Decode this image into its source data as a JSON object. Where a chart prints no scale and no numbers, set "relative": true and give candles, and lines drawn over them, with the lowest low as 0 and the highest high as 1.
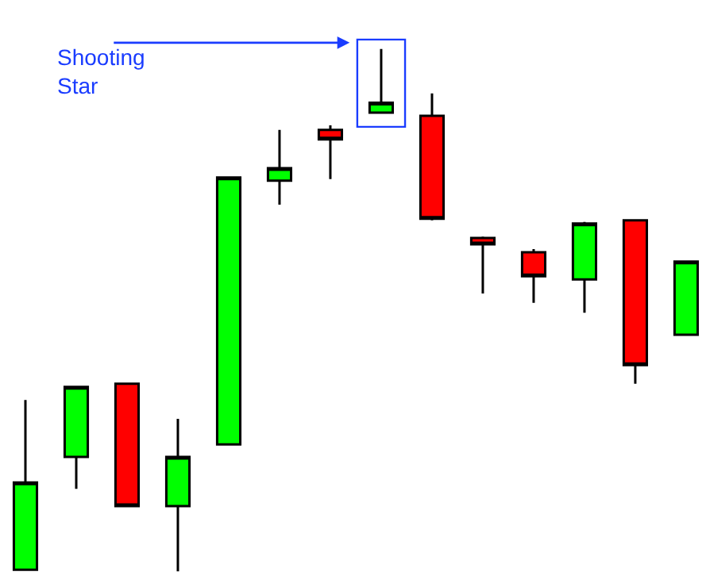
{
  "chart_data": {
    "type": "candlestick",
    "relative": true,
    "categories": [
      null,
      null,
      null,
      null,
      null,
      null,
      null,
      null,
      null,
      null,
      null,
      null,
      null,
      null
    ],
    "ohlc": [
      [
        0.003,
        0.328,
        0.003,
        0.17
      ],
      [
        0.219,
        0.353,
        0.158,
        0.353
      ],
      [
        0.359,
        0.359,
        0.125,
        0.125
      ],
      [
        0.125,
        0.292,
        0.0,
        0.219
      ],
      [
        0.243,
        0.754,
        0.243,
        0.754
      ],
      [
        0.748,
        0.845,
        0.702,
        0.772
      ],
      [
        0.845,
        0.854,
        0.751,
        0.827
      ],
      [
        0.878,
        1.0,
        0.878,
        0.897
      ],
      [
        0.872,
        0.915,
        0.672,
        0.675
      ],
      [
        0.638,
        0.641,
        0.532,
        0.626
      ],
      [
        0.611,
        0.617,
        0.514,
        0.565
      ],
      [
        0.559,
        0.669,
        0.495,
        0.666
      ],
      [
        0.672,
        0.672,
        0.359,
        0.395
      ],
      [
        0.453,
        0.593,
        0.453,
        0.593
      ]
    ],
    "colors": [
      "#00ff00",
      "#00ff00",
      "#ff0000",
      "#00ff00",
      "#00ff00",
      "#00ff00",
      "#ff0000",
      "#00ff00",
      "#ff0000",
      "#ff0000",
      "#ff0000",
      "#00ff00",
      "#ff0000",
      "#00ff00"
    ],
    "annotations": [
      "Shooting\nStar"
    ]
  }
}
